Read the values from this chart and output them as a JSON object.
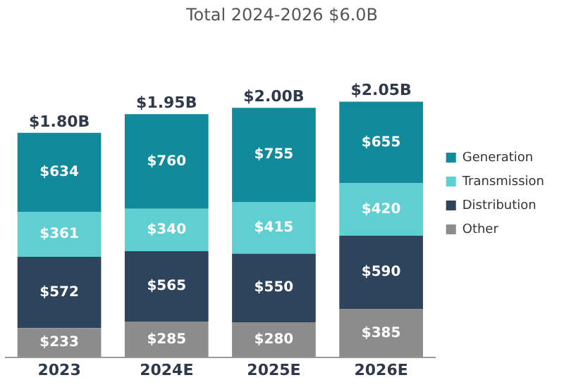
{
  "chart_data": {
    "type": "bar",
    "stacked": true,
    "title": "Total 2024-2026 $6.0B",
    "categories": [
      "2023",
      "2024E",
      "2025E",
      "2026E"
    ],
    "series": [
      {
        "name": "Other",
        "color": "#8c8c8c",
        "values": [
          233,
          285,
          280,
          385
        ],
        "value_labels": [
          "$233",
          "$285",
          "$280",
          "$385"
        ]
      },
      {
        "name": "Distribution",
        "color": "#2e445c",
        "values": [
          572,
          565,
          550,
          590
        ],
        "value_labels": [
          "$572",
          "$565",
          "$550",
          "$590"
        ]
      },
      {
        "name": "Transmission",
        "color": "#5fcfd1",
        "values": [
          361,
          340,
          415,
          420
        ],
        "value_labels": [
          "$361",
          "$340",
          "$415",
          "$420"
        ]
      },
      {
        "name": "Generation",
        "color": "#118a9c",
        "values": [
          634,
          760,
          755,
          655
        ],
        "value_labels": [
          "$634",
          "$760",
          "$755",
          "$655"
        ]
      }
    ],
    "totals": [
      "$1.80B",
      "$1.95B",
      "$2.00B",
      "$2.05B"
    ],
    "legend": "right",
    "grid": false
  }
}
